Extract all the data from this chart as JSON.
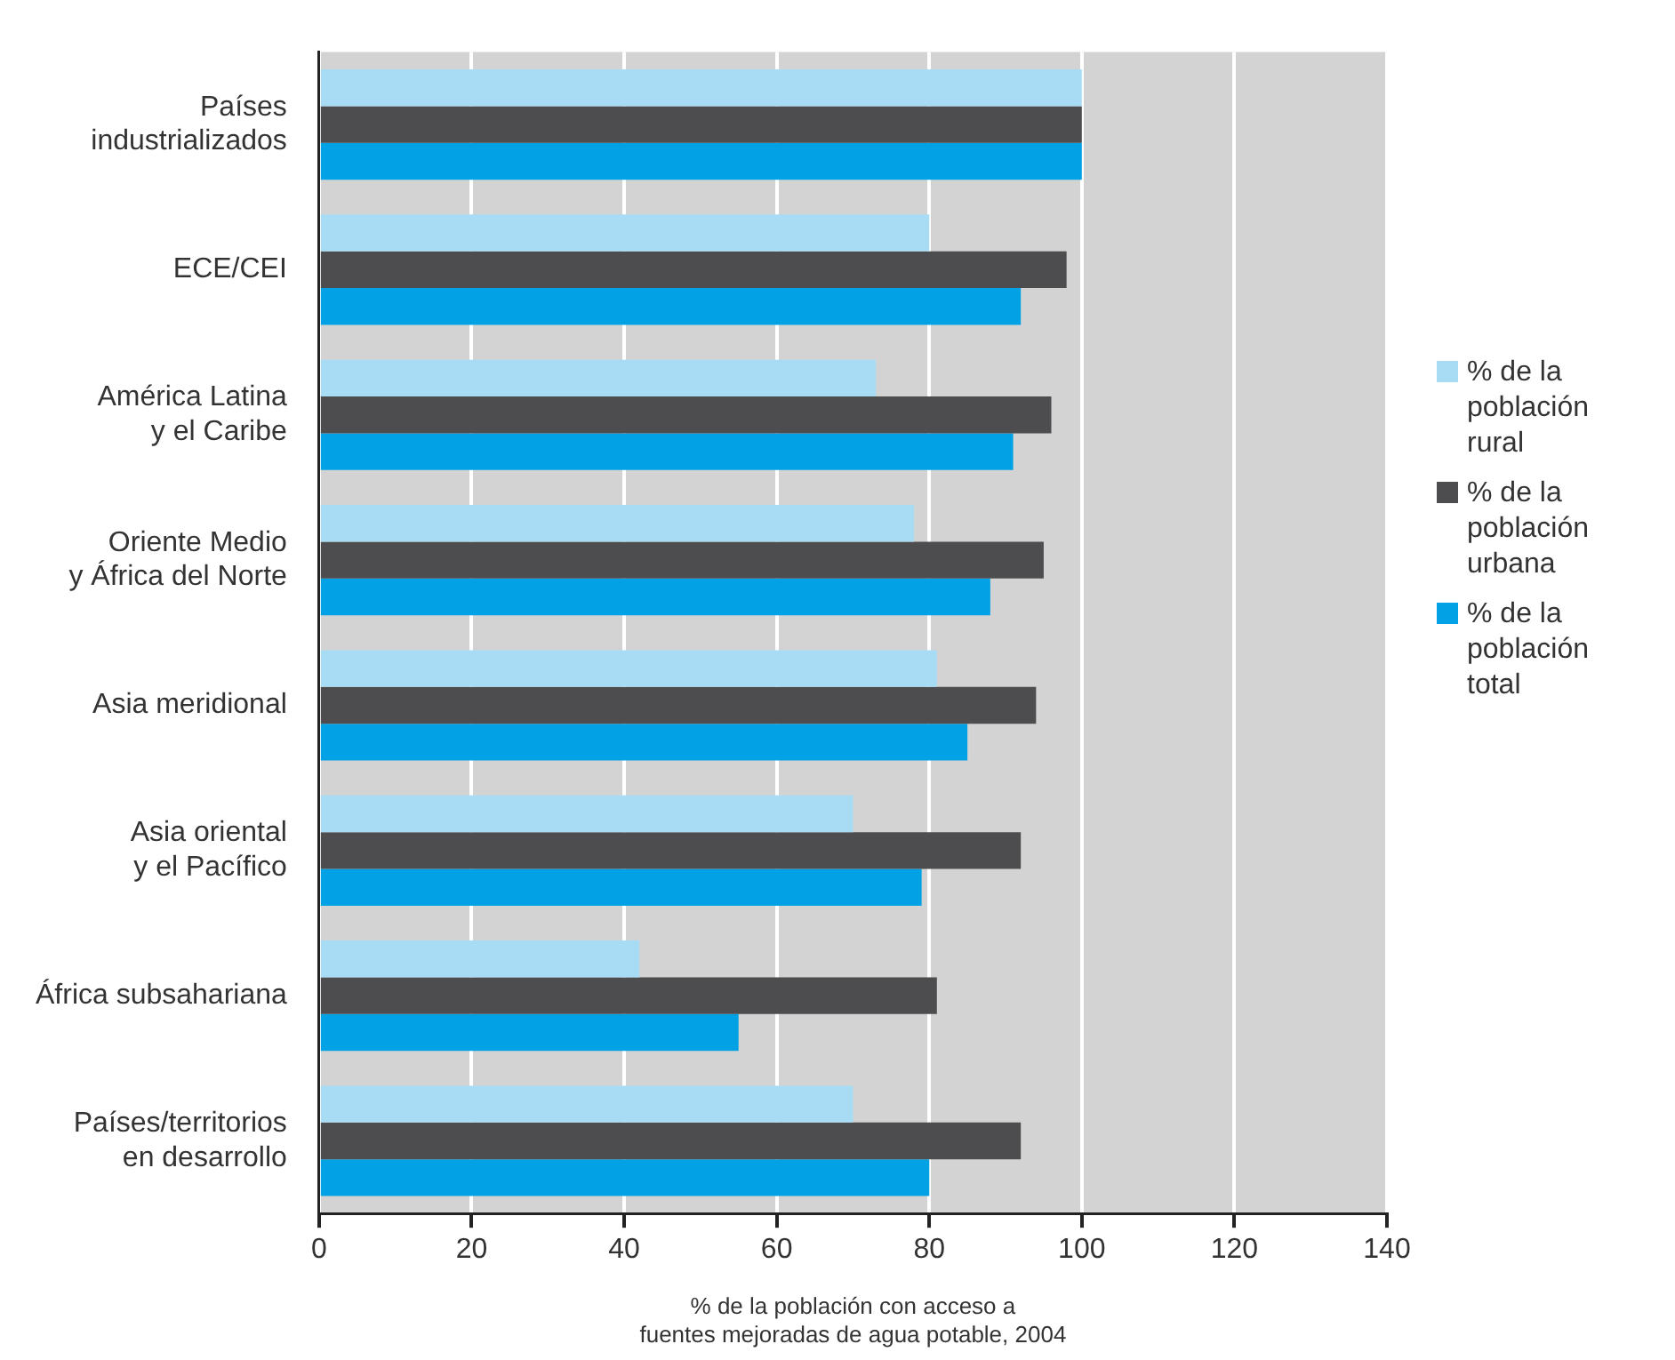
{
  "chart_data": {
    "type": "bar",
    "orientation": "horizontal",
    "xlabel": "% de la población con acceso a\nfuentes mejoradas de agua potable, 2004",
    "categories": [
      "Países\nindustrializados",
      "ECE/CEI",
      "América Latina\ny el Caribe",
      "Oriente Medio\ny África del Norte",
      "Asia meridional",
      "Asia oriental\ny el Pacífico",
      "África subsahariana",
      "Países/territorios\nen desarrollo"
    ],
    "series": [
      {
        "name": "% de la población rural",
        "color": "#a8dcf5",
        "values": [
          100,
          80,
          73,
          78,
          81,
          70,
          42,
          70
        ]
      },
      {
        "name": "% de la población urbana",
        "color": "#4d4d4f",
        "values": [
          100,
          98,
          96,
          95,
          94,
          92,
          81,
          92
        ]
      },
      {
        "name": "% de la población total",
        "color": "#00a2e5",
        "values": [
          100,
          92,
          91,
          88,
          85,
          79,
          55,
          80
        ]
      }
    ],
    "xlim": [
      0,
      140
    ],
    "xticks": [
      0,
      20,
      40,
      60,
      80,
      100,
      120,
      140
    ],
    "grid": "x",
    "legend": "right"
  }
}
